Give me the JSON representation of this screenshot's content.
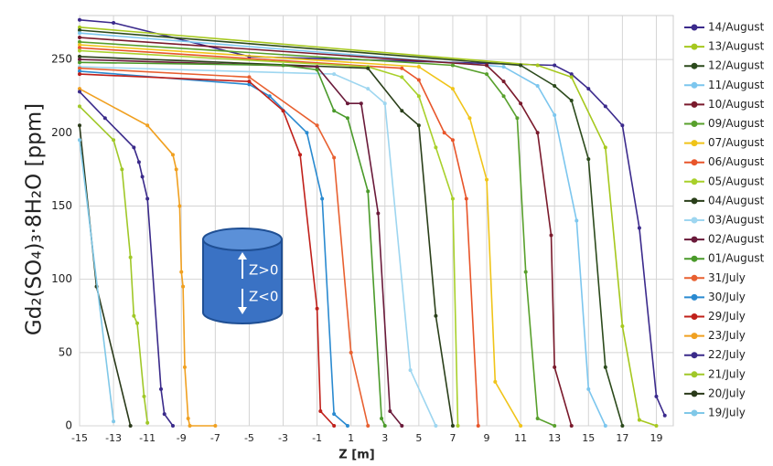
{
  "chart_data": {
    "type": "line",
    "y_label": "Gd₂(SO₄)₃·8H₂O [ppm]",
    "x_label": "Z [m]",
    "annotations": [
      "Z>0",
      "Z<0"
    ],
    "xlim": [
      -15,
      20
    ],
    "ylim": [
      0,
      280
    ],
    "xticks": [
      -15,
      -13,
      -11,
      -9,
      -7,
      -5,
      -3,
      -1,
      1,
      3,
      5,
      7,
      9,
      11,
      13,
      15,
      17,
      19
    ],
    "yticks": [
      0,
      50,
      100,
      150,
      200,
      250
    ],
    "grid": true,
    "series": [
      {
        "name": "14/August",
        "color": "#3b2a8c",
        "x": [
          -15,
          -13,
          -5,
          13,
          14,
          15,
          16,
          17,
          18,
          19,
          19.5
        ],
        "values": [
          277,
          275,
          252,
          246,
          240,
          230,
          218,
          205,
          135,
          20,
          7
        ]
      },
      {
        "name": "13/August",
        "color": "#a6c81e",
        "x": [
          -15,
          12,
          14,
          16,
          17,
          18,
          19
        ],
        "values": [
          272,
          246,
          238,
          190,
          68,
          4,
          0
        ]
      },
      {
        "name": "12/August",
        "color": "#2c4a1c",
        "x": [
          -15,
          11,
          13,
          14,
          15,
          16,
          17
        ],
        "values": [
          270,
          246,
          232,
          222,
          182,
          40,
          0
        ]
      },
      {
        "name": "11/August",
        "color": "#7cc6ee",
        "x": [
          -15,
          10,
          12,
          13,
          14.3,
          15,
          16
        ],
        "values": [
          268,
          245,
          232,
          212,
          140,
          25,
          0
        ]
      },
      {
        "name": "10/August",
        "color": "#7a1a2c",
        "x": [
          -15,
          9,
          10,
          11,
          12,
          12.8,
          13,
          14
        ],
        "values": [
          265,
          246,
          235,
          220,
          200,
          130,
          40,
          0
        ]
      },
      {
        "name": "09/August",
        "color": "#58a02c",
        "x": [
          -15,
          7,
          9,
          10,
          10.8,
          11.3,
          12,
          13
        ],
        "values": [
          262,
          246,
          240,
          225,
          210,
          105,
          5,
          0
        ]
      },
      {
        "name": "07/August",
        "color": "#f0c419",
        "x": [
          -15,
          5,
          7,
          8,
          9,
          9.5,
          11
        ],
        "values": [
          260,
          245,
          230,
          210,
          168,
          30,
          0
        ]
      },
      {
        "name": "06/August",
        "color": "#e8552a",
        "x": [
          -15,
          4,
          5,
          6.5,
          7,
          7.8,
          8.5
        ],
        "values": [
          258,
          244,
          236,
          200,
          195,
          155,
          0
        ]
      },
      {
        "name": "05/August",
        "color": "#a8d02a",
        "x": [
          -15,
          2,
          4,
          5,
          6,
          7,
          7.3
        ],
        "values": [
          256,
          245,
          238,
          225,
          190,
          155,
          0
        ]
      },
      {
        "name": "04/August",
        "color": "#2a3f1a",
        "x": [
          -15,
          2,
          4,
          5,
          6,
          7
        ],
        "values": [
          252,
          244,
          215,
          205,
          75,
          0
        ]
      },
      {
        "name": "03/August",
        "color": "#9ed6f0",
        "x": [
          -15,
          0,
          2,
          3,
          4.5,
          6
        ],
        "values": [
          245,
          240,
          230,
          220,
          38,
          0
        ]
      },
      {
        "name": "02/August",
        "color": "#6a1a3a",
        "x": [
          -15,
          -1,
          0.8,
          1.6,
          2.6,
          3.3,
          4
        ],
        "values": [
          250,
          245,
          220,
          220,
          145,
          10,
          0
        ]
      },
      {
        "name": "01/August",
        "color": "#4a9a2a",
        "x": [
          -15,
          -3,
          -1,
          0,
          0.8,
          2,
          2.8,
          3
        ],
        "values": [
          248,
          246,
          243,
          215,
          210,
          160,
          5,
          0
        ]
      },
      {
        "name": "31/July",
        "color": "#e86030",
        "x": [
          -15,
          -5,
          -1,
          0,
          1,
          2
        ],
        "values": [
          244,
          238,
          205,
          183,
          50,
          0
        ]
      },
      {
        "name": "30/July",
        "color": "#2a8ad0",
        "x": [
          -15,
          -5,
          -3.8,
          -1.6,
          -0.7,
          0,
          0.8
        ],
        "values": [
          242,
          233,
          225,
          200,
          155,
          8,
          0
        ]
      },
      {
        "name": "29/July",
        "color": "#c0201a",
        "x": [
          -15,
          -5,
          -3,
          -2,
          -1,
          -0.8,
          0
        ],
        "values": [
          240,
          235,
          215,
          185,
          80,
          10,
          0
        ]
      },
      {
        "name": "23/July",
        "color": "#f0a020",
        "x": [
          -15,
          -11,
          -9.5,
          -9.3,
          -9.1,
          -9,
          -8.9,
          -8.8,
          -8.6,
          -8.5,
          -7
        ],
        "values": [
          230,
          205,
          185,
          175,
          150,
          105,
          95,
          40,
          5,
          0,
          0
        ]
      },
      {
        "name": "22/July",
        "color": "#3a2a8a",
        "x": [
          -15,
          -13.5,
          -11.8,
          -11.5,
          -11.3,
          -11,
          -10.2,
          -10,
          -9.5
        ],
        "values": [
          228,
          210,
          190,
          180,
          170,
          155,
          25,
          8,
          0
        ]
      },
      {
        "name": "21/July",
        "color": "#a0c828",
        "x": [
          -15,
          -13,
          -12.5,
          -12,
          -11.8,
          -11.6,
          -11.2,
          -11
        ],
        "values": [
          218,
          195,
          175,
          115,
          75,
          70,
          20,
          2
        ]
      },
      {
        "name": "20/July",
        "color": "#2a3a1a",
        "x": [
          -15,
          -14,
          -12
        ],
        "values": [
          205,
          95,
          0
        ]
      },
      {
        "name": "19/July",
        "color": "#80c8e8",
        "x": [
          -15,
          -13
        ],
        "values": [
          195,
          3
        ]
      }
    ]
  }
}
